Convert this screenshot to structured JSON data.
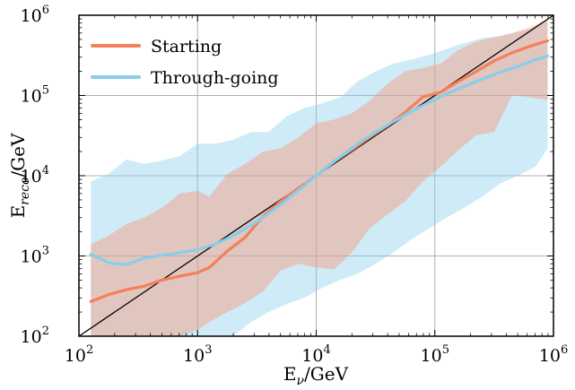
{
  "chart_data": {
    "type": "line",
    "xscale": "log",
    "yscale": "log",
    "xlim": [
      100,
      1000000
    ],
    "ylim": [
      100,
      1000000
    ],
    "xlabel": {
      "base": "E",
      "sub": "ν",
      "unit": "/GeV"
    },
    "ylabel": {
      "base": "E",
      "sub": "reco",
      "unit": "/GeV"
    },
    "grid": true,
    "legend_position": "top-left",
    "x_ticks": [
      {
        "value": 100,
        "base": "10",
        "exp": "2"
      },
      {
        "value": 1000,
        "base": "10",
        "exp": "3"
      },
      {
        "value": 10000,
        "base": "10",
        "exp": "4"
      },
      {
        "value": 100000,
        "base": "10",
        "exp": "5"
      },
      {
        "value": 1000000,
        "base": "10",
        "exp": "6"
      }
    ],
    "y_ticks": [
      {
        "value": 100,
        "base": "10",
        "exp": "2"
      },
      {
        "value": 1000,
        "base": "10",
        "exp": "3"
      },
      {
        "value": 10000,
        "base": "10",
        "exp": "4"
      },
      {
        "value": 100000,
        "base": "10",
        "exp": "5"
      },
      {
        "value": 1000000,
        "base": "10",
        "exp": "6"
      }
    ],
    "reference_line": {
      "x": [
        100,
        1000000
      ],
      "y": [
        100,
        1000000
      ],
      "color": "#000000"
    },
    "series": [
      {
        "name": "Through-going",
        "color": "#87ceeb",
        "band_color": "#87ceeb",
        "band_opacity": 0.4,
        "x": [
          126,
          178,
          251,
          355,
          501,
          708,
          1000,
          1413,
          1995,
          2818,
          3981,
          5623,
          7943,
          11220,
          15849,
          22387,
          31623,
          44668,
          63096,
          89125,
          125893,
          177828,
          251189,
          354813,
          501187,
          707946,
          891251
        ],
        "y": [
          1050,
          820,
          780,
          940,
          1020,
          1100,
          1200,
          1400,
          1800,
          2400,
          3400,
          5000,
          7600,
          11500,
          17000,
          25000,
          35000,
          47000,
          63000,
          82000,
          105000,
          130000,
          160000,
          195000,
          230000,
          280000,
          310000
        ],
        "upper": [
          8500,
          10500,
          16000,
          14000,
          15500,
          17500,
          25000,
          25000,
          28000,
          35000,
          35000,
          55000,
          70000,
          80000,
          95000,
          150000,
          200000,
          250000,
          280000,
          320000,
          380000,
          450000,
          520000,
          550000,
          620000,
          700000,
          850000
        ],
        "lower": [
          100,
          100,
          100,
          100,
          100,
          100,
          100,
          100,
          100,
          150,
          200,
          250,
          300,
          400,
          500,
          600,
          800,
          1100,
          1600,
          2200,
          3000,
          4000,
          5500,
          8000,
          10000,
          13000,
          22000
        ]
      },
      {
        "name": "Starting",
        "color": "#f4805a",
        "band_color": "#fa9272",
        "band_opacity": 0.42,
        "x": [
          126,
          178,
          251,
          355,
          501,
          708,
          1000,
          1259,
          1778,
          2512,
          3548,
          5012,
          7079,
          10000,
          14125,
          19953,
          28184,
          39811,
          56234,
          79433,
          112202,
          158489,
          223872,
          316228,
          446684,
          630957,
          891251
        ],
        "y": [
          270,
          330,
          380,
          420,
          500,
          560,
          620,
          720,
          1150,
          1700,
          3100,
          4800,
          7000,
          10000,
          15000,
          21000,
          30000,
          42000,
          62000,
          96000,
          110000,
          150000,
          200000,
          270000,
          340000,
          410000,
          480000
        ],
        "upper": [
          1400,
          1800,
          2500,
          3000,
          4000,
          6000,
          6500,
          5500,
          10500,
          14000,
          20000,
          22000,
          30000,
          45000,
          50000,
          60000,
          85000,
          140000,
          200000,
          220000,
          250000,
          370000,
          470000,
          530000,
          600000,
          700000,
          900000
        ],
        "lower": [
          100,
          100,
          100,
          100,
          100,
          100,
          120,
          150,
          200,
          260,
          360,
          660,
          800,
          720,
          680,
          1100,
          2200,
          3300,
          4800,
          8500,
          13000,
          21000,
          32000,
          35000,
          100000,
          95000,
          88000
        ]
      }
    ],
    "legend": [
      {
        "label": "Starting",
        "color": "#f4805a"
      },
      {
        "label": "Through-going",
        "color": "#87ceeb"
      }
    ]
  }
}
